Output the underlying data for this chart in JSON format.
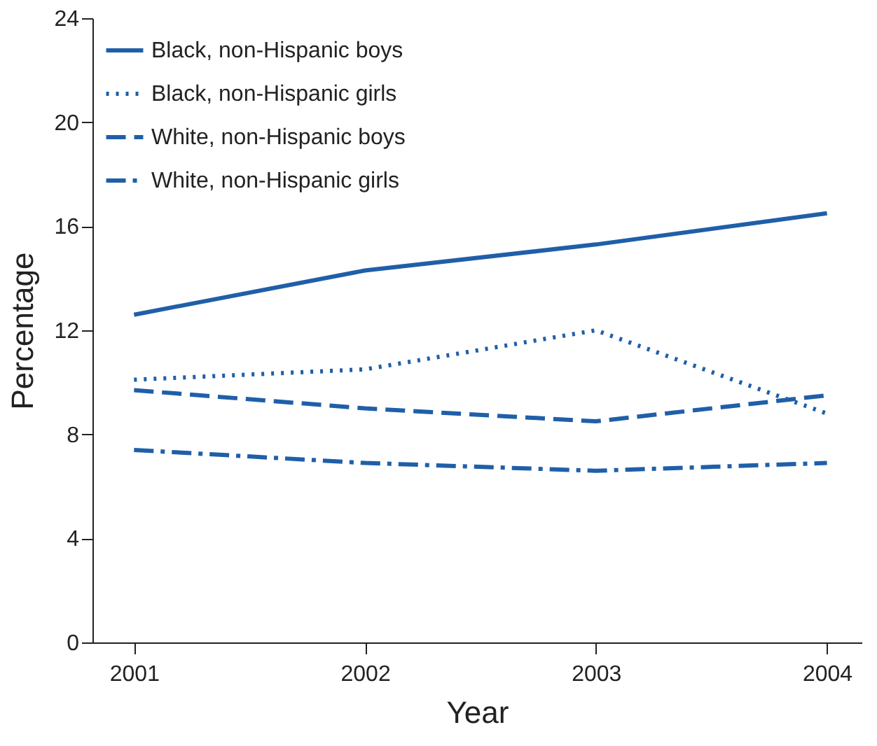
{
  "chart_data": {
    "type": "line",
    "xlabel": "Year",
    "ylabel": "Percentage",
    "x": [
      2001,
      2002,
      2003,
      2004
    ],
    "xlim": [
      2000.82,
      2004.15
    ],
    "xticks": [
      2001,
      2002,
      2003,
      2004
    ],
    "ylim": [
      0,
      24
    ],
    "yticks": [
      0,
      4,
      8,
      12,
      16,
      20,
      24
    ],
    "grid": false,
    "legend": "top left",
    "marker": "none",
    "series": [
      {
        "name": "Black, non-Hispanic boys",
        "color": "#1f5fa8",
        "line_style": "solid",
        "values": [
          12.6,
          14.3,
          15.3,
          16.5
        ]
      },
      {
        "name": "Black, non-Hispanic girls",
        "color": "#1f5fa8",
        "line_style": "dotted",
        "values": [
          10.1,
          10.5,
          12.0,
          8.8
        ]
      },
      {
        "name": "White, non-Hispanic boys",
        "color": "#1f5fa8",
        "line_style": "dashed",
        "values": [
          9.7,
          9.0,
          8.5,
          9.5
        ]
      },
      {
        "name": "White, non-Hispanic girls",
        "color": "#1f5fa8",
        "line_style": "dashdot",
        "values": [
          7.4,
          6.9,
          6.6,
          6.9
        ]
      }
    ]
  }
}
